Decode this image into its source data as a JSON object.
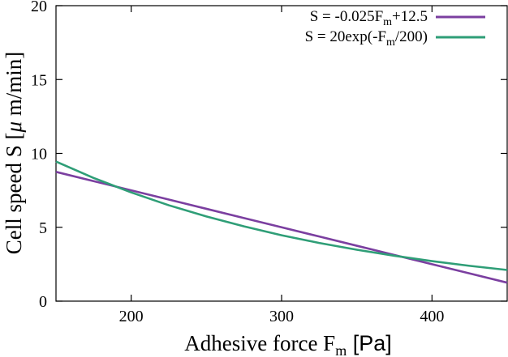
{
  "chart_data": {
    "type": "line",
    "title": "",
    "xlabel": {
      "base": "Adhesive force F",
      "sub": "m",
      "unit": " [Pa]"
    },
    "ylabel": {
      "text": "Cell speed S [",
      "mu": "μ",
      "unit": " m/min]"
    },
    "xlim": [
      150,
      450
    ],
    "ylim": [
      0,
      20
    ],
    "xticks": [
      200,
      300,
      400
    ],
    "yticks": [
      0,
      5,
      10,
      15,
      20
    ],
    "grid": false,
    "legend_position": "top-right",
    "series": [
      {
        "name": "S = -0.025F_m+12.5",
        "legend": {
          "pre": "S = -0.025F",
          "sub": "m",
          "post": "+12.5"
        },
        "color": "#7b3fa0",
        "x": [
          150,
          175,
          200,
          225,
          250,
          275,
          300,
          325,
          350,
          375,
          400,
          425,
          450
        ],
        "y": [
          8.75,
          8.125,
          7.5,
          6.875,
          6.25,
          5.625,
          5.0,
          4.375,
          3.75,
          3.125,
          2.5,
          1.875,
          1.25
        ]
      },
      {
        "name": "S = 20exp(-F_m/200)",
        "legend": {
          "pre": "S = 20exp(-F",
          "sub": "m",
          "post": "/200)"
        },
        "color": "#2f9e77",
        "x": [
          150,
          175,
          200,
          225,
          250,
          275,
          300,
          325,
          350,
          375,
          400,
          425,
          450
        ],
        "y": [
          9.45,
          8.34,
          7.36,
          6.49,
          5.73,
          5.06,
          4.46,
          3.94,
          3.48,
          3.07,
          2.71,
          2.39,
          2.11
        ]
      }
    ]
  }
}
